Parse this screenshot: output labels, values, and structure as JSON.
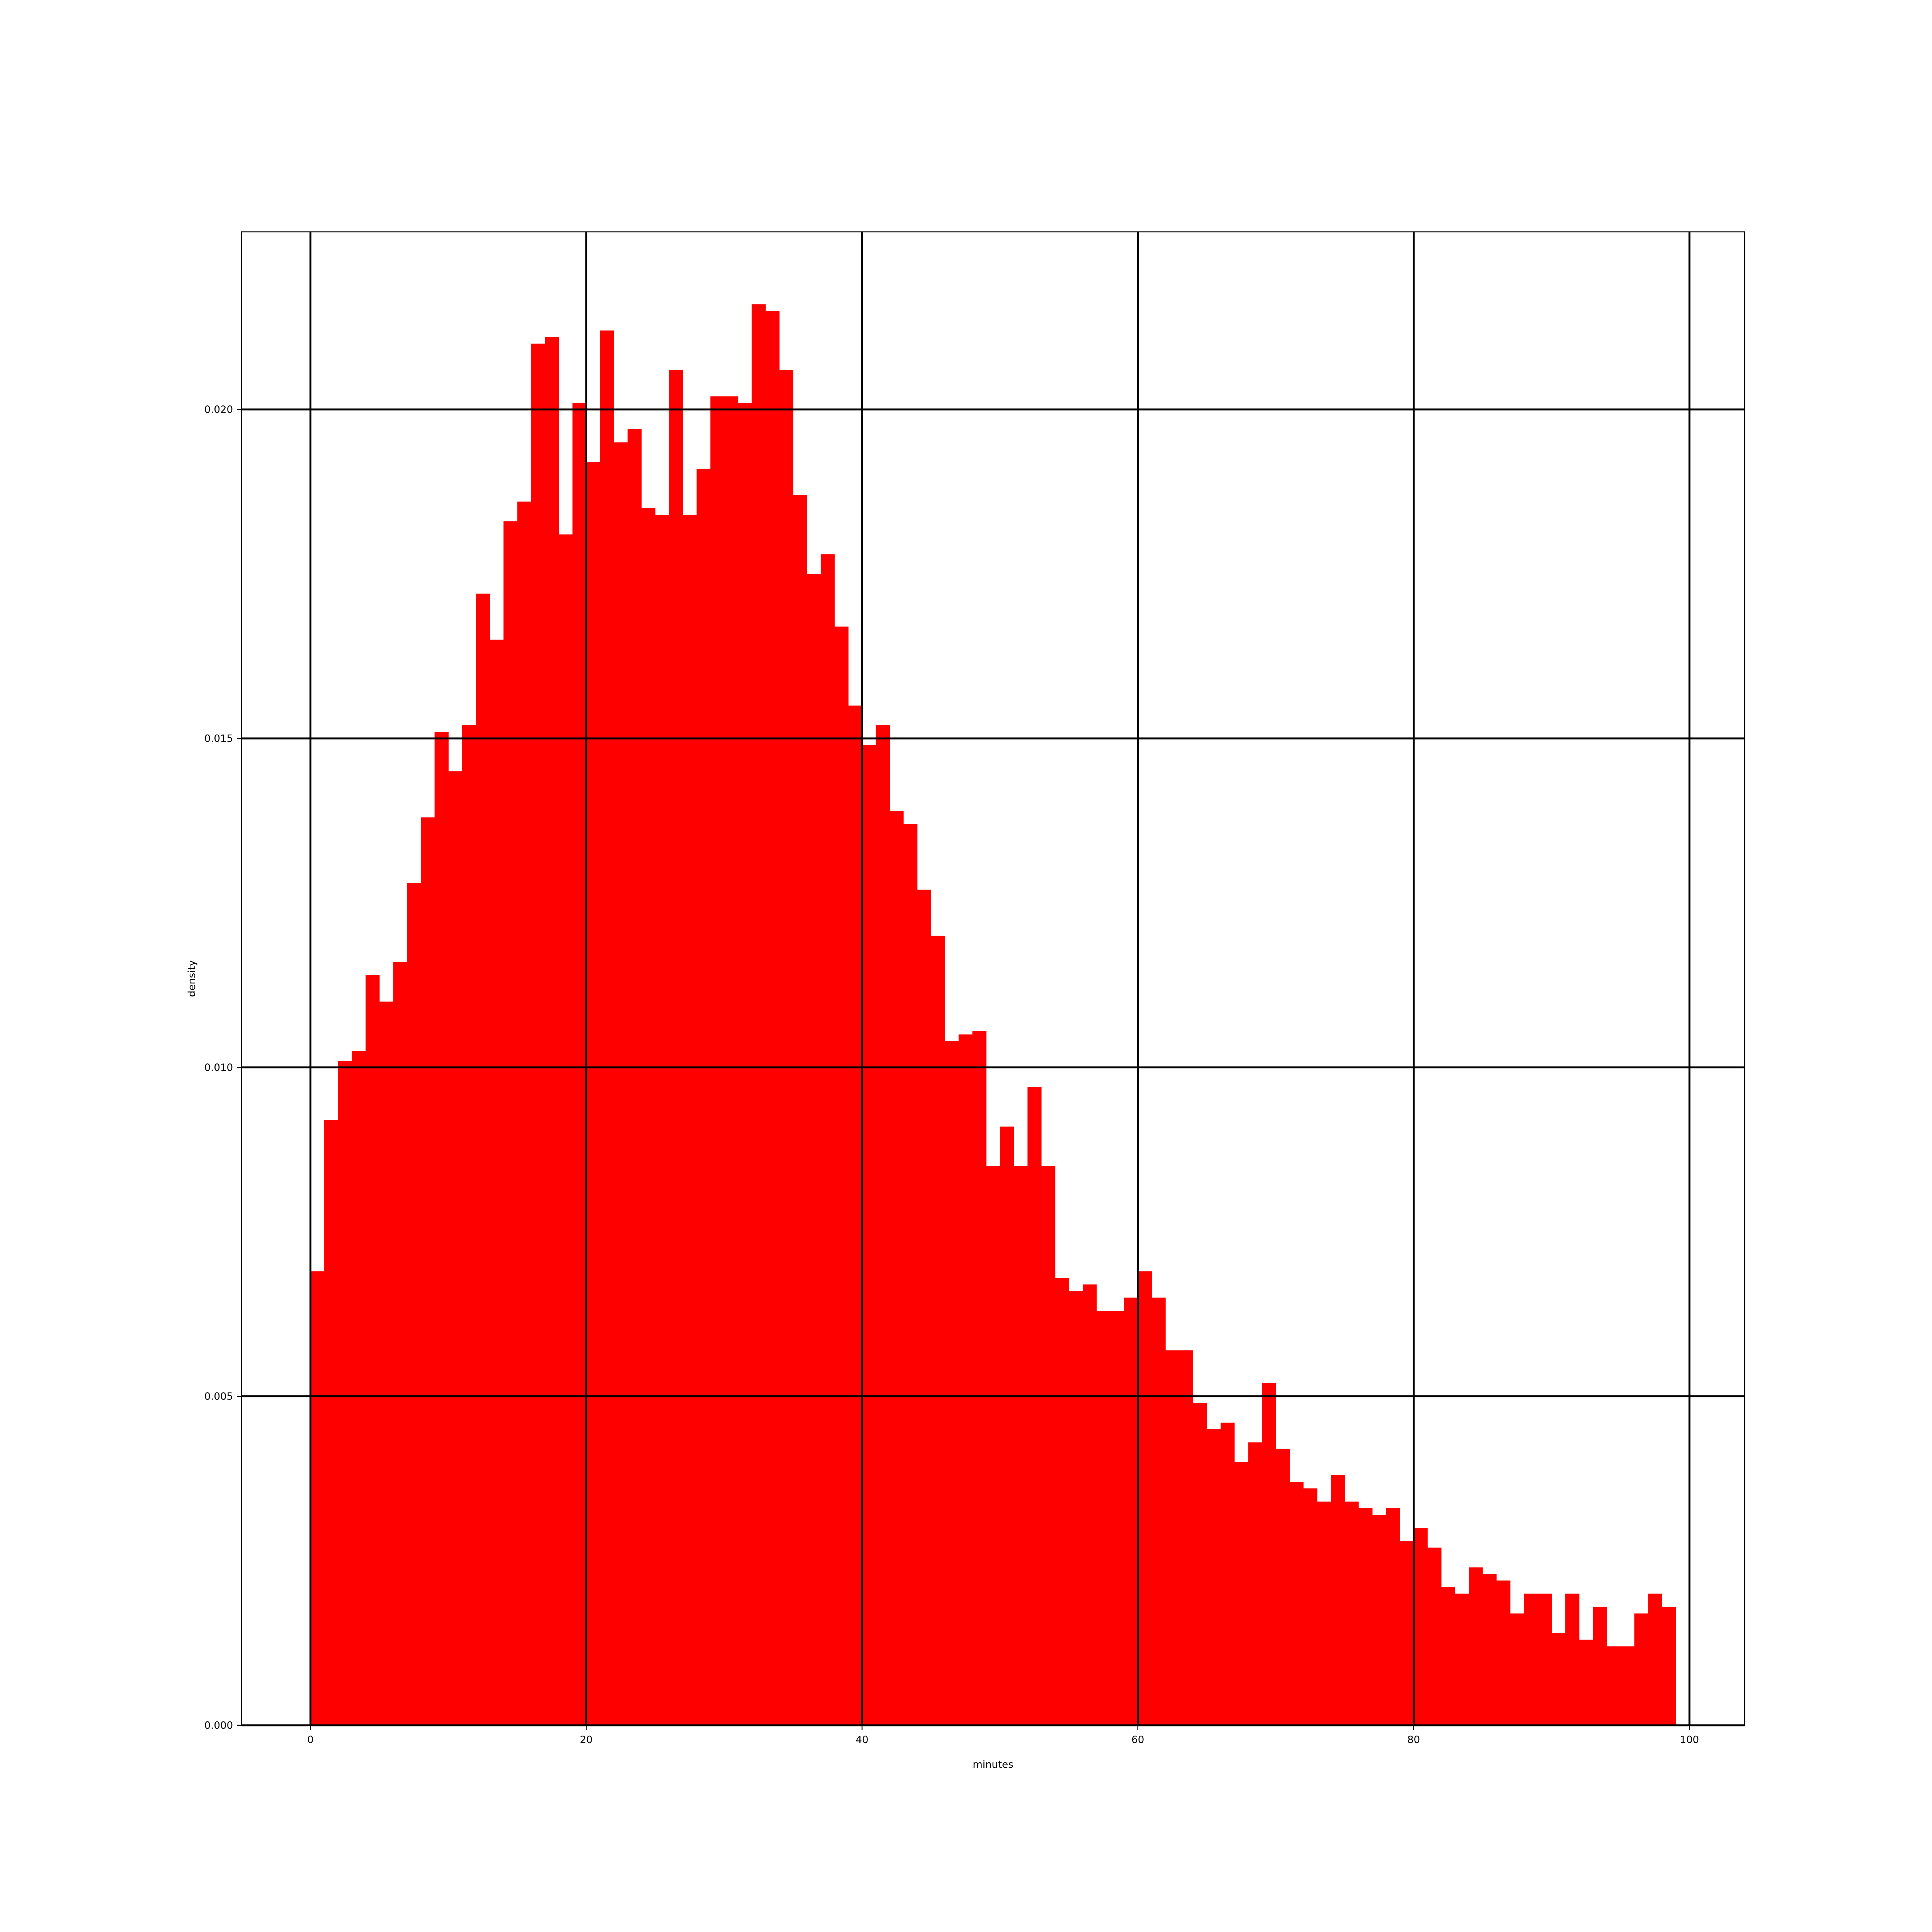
{
  "chart_data": {
    "type": "bar",
    "title": "",
    "xlabel": "minutes",
    "ylabel": "density",
    "xlim": [
      -5,
      104
    ],
    "ylim": [
      0,
      0.0227
    ],
    "grid": true,
    "bar_color": "#ff0000",
    "grid_color": "#000000",
    "bin_start": 0,
    "bin_width": 1,
    "x_ticks": [
      0,
      20,
      40,
      60,
      80,
      100
    ],
    "x_tick_labels": [
      "0",
      "20",
      "40",
      "60",
      "80",
      "100"
    ],
    "y_ticks": [
      0,
      0.005,
      0.01,
      0.015,
      0.02
    ],
    "y_tick_labels": [
      "0.000",
      "0.005",
      "0.010",
      "0.015",
      "0.020"
    ],
    "values": [
      0.0069,
      0.0092,
      0.0101,
      0.01025,
      0.0114,
      0.011,
      0.0116,
      0.0128,
      0.0138,
      0.0151,
      0.0145,
      0.0152,
      0.0172,
      0.0165,
      0.0183,
      0.0186,
      0.021,
      0.0211,
      0.0181,
      0.0201,
      0.0192,
      0.0212,
      0.0195,
      0.0197,
      0.0185,
      0.0184,
      0.0206,
      0.0184,
      0.0191,
      0.0202,
      0.0202,
      0.0201,
      0.0216,
      0.0215,
      0.0206,
      0.0187,
      0.0175,
      0.0178,
      0.0167,
      0.0155,
      0.0149,
      0.0152,
      0.0139,
      0.0137,
      0.0127,
      0.012,
      0.0104,
      0.0105,
      0.01055,
      0.0085,
      0.0091,
      0.0085,
      0.0097,
      0.0085,
      0.0068,
      0.0066,
      0.0067,
      0.0063,
      0.0063,
      0.0065,
      0.0069,
      0.0065,
      0.0057,
      0.0057,
      0.0049,
      0.0045,
      0.0046,
      0.004,
      0.0043,
      0.0052,
      0.0042,
      0.0037,
      0.0036,
      0.0034,
      0.0038,
      0.0034,
      0.0033,
      0.0032,
      0.0033,
      0.0028,
      0.003,
      0.0027,
      0.0021,
      0.002,
      0.0024,
      0.0023,
      0.0022,
      0.0017,
      0.002,
      0.002,
      0.0014,
      0.002,
      0.0013,
      0.0018,
      0.0012,
      0.0012,
      0.0017,
      0.002,
      0.0018
    ]
  }
}
